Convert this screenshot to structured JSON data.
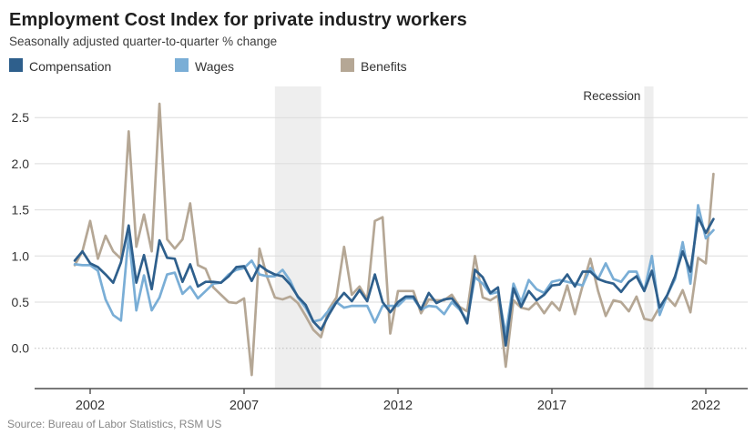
{
  "header": {
    "title": "Employment Cost Index for private industry workers",
    "subtitle": "Seasonally adjusted quarter-to-quarter % change"
  },
  "source": "Source: Bureau of Labor Statistics, RSM US",
  "annotations": {
    "recession_label": "Recession"
  },
  "colors": {
    "compensation": "#2e5f8c",
    "wages": "#7aaed6",
    "benefits": "#b5a795",
    "gridline": "#dcdcdc",
    "zero_line": "#bcbcbc",
    "axis": "#4d4d4d",
    "recession_band": "#eeeeee",
    "tick_text": "#333333"
  },
  "chart_data": {
    "type": "line",
    "title": "Employment Cost Index for private industry workers",
    "subtitle": "Seasonally adjusted quarter-to-quarter % change",
    "x_unit": "quarter",
    "x_start": "2001 Q2",
    "x_end": "2022 Q1",
    "x_start_year_decimal": 2001.5,
    "x_step_years": 0.25,
    "grid": true,
    "legend_position": "top",
    "ylim": [
      -0.45,
      2.85
    ],
    "y_axis_ticks": [
      {
        "label": "0.0",
        "value": 0.0,
        "style": "dotted"
      },
      {
        "label": "0.5",
        "value": 0.5,
        "style": "solid"
      },
      {
        "label": "1.0",
        "value": 1.0,
        "style": "solid"
      },
      {
        "label": "1.5",
        "value": 1.5,
        "style": "solid"
      },
      {
        "label": "2.0",
        "value": 2.0,
        "style": "solid"
      },
      {
        "label": "2.5",
        "value": 2.5,
        "style": "solid"
      }
    ],
    "x_axis_ticks": [
      {
        "label": "2002",
        "year": 2002
      },
      {
        "label": "2007",
        "year": 2007
      },
      {
        "label": "2012",
        "year": 2012
      },
      {
        "label": "2017",
        "year": 2017
      },
      {
        "label": "2022",
        "year": 2022
      }
    ],
    "recessions": [
      {
        "start_year": 2008.0,
        "end_year": 2009.5
      },
      {
        "start_year": 2020.0,
        "end_year": 2020.3
      }
    ],
    "series": [
      {
        "name": "Compensation",
        "color": "#2e5f8c",
        "values": [
          0.95,
          1.05,
          0.92,
          0.88,
          0.8,
          0.71,
          0.93,
          1.33,
          0.71,
          1.01,
          0.64,
          1.17,
          0.98,
          0.97,
          0.72,
          0.91,
          0.67,
          0.72,
          0.72,
          0.71,
          0.78,
          0.88,
          0.89,
          0.73,
          0.9,
          0.84,
          0.8,
          0.78,
          0.69,
          0.56,
          0.47,
          0.29,
          0.2,
          0.36,
          0.5,
          0.6,
          0.51,
          0.63,
          0.51,
          0.8,
          0.5,
          0.39,
          0.5,
          0.56,
          0.56,
          0.42,
          0.6,
          0.49,
          0.53,
          0.54,
          0.44,
          0.27,
          0.85,
          0.77,
          0.6,
          0.66,
          0.03,
          0.65,
          0.45,
          0.62,
          0.52,
          0.58,
          0.68,
          0.69,
          0.8,
          0.67,
          0.83,
          0.83,
          0.75,
          0.72,
          0.7,
          0.61,
          0.72,
          0.78,
          0.62,
          0.84,
          0.44,
          0.58,
          0.78,
          1.05,
          0.83,
          1.42,
          1.25,
          1.4
        ]
      },
      {
        "name": "Wages",
        "color": "#7aaed6",
        "values": [
          0.91,
          0.9,
          0.9,
          0.84,
          0.53,
          0.36,
          0.3,
          1.23,
          0.41,
          0.79,
          0.41,
          0.55,
          0.8,
          0.82,
          0.59,
          0.67,
          0.54,
          0.62,
          0.7,
          0.71,
          0.8,
          0.85,
          0.87,
          0.95,
          0.8,
          0.78,
          0.78,
          0.85,
          0.73,
          0.55,
          0.44,
          0.29,
          0.31,
          0.41,
          0.5,
          0.44,
          0.46,
          0.46,
          0.46,
          0.28,
          0.46,
          0.46,
          0.46,
          0.54,
          0.54,
          0.42,
          0.46,
          0.45,
          0.37,
          0.5,
          0.42,
          0.3,
          0.77,
          0.7,
          0.59,
          0.61,
          0.15,
          0.7,
          0.5,
          0.74,
          0.64,
          0.6,
          0.72,
          0.74,
          0.72,
          0.7,
          0.68,
          0.87,
          0.75,
          0.92,
          0.75,
          0.72,
          0.83,
          0.83,
          0.62,
          1.0,
          0.36,
          0.58,
          0.75,
          1.15,
          0.7,
          1.55,
          1.19,
          1.28
        ]
      },
      {
        "name": "Benefits",
        "color": "#b5a795",
        "values": [
          0.9,
          1.05,
          1.38,
          0.97,
          1.22,
          1.05,
          0.97,
          2.35,
          1.1,
          1.45,
          1.05,
          2.65,
          1.18,
          1.08,
          1.18,
          1.57,
          0.9,
          0.86,
          0.66,
          0.58,
          0.5,
          0.49,
          0.54,
          -0.29,
          1.08,
          0.77,
          0.55,
          0.53,
          0.56,
          0.49,
          0.35,
          0.2,
          0.12,
          0.42,
          0.55,
          1.1,
          0.58,
          0.67,
          0.53,
          1.38,
          1.42,
          0.16,
          0.62,
          0.62,
          0.62,
          0.38,
          0.53,
          0.52,
          0.52,
          0.58,
          0.45,
          0.4,
          1.0,
          0.55,
          0.52,
          0.57,
          -0.2,
          0.52,
          0.44,
          0.42,
          0.5,
          0.38,
          0.5,
          0.41,
          0.68,
          0.37,
          0.68,
          0.97,
          0.62,
          0.35,
          0.52,
          0.5,
          0.4,
          0.56,
          0.32,
          0.3,
          0.45,
          0.55,
          0.46,
          0.63,
          0.39,
          0.98,
          0.92,
          1.89
        ]
      }
    ]
  }
}
